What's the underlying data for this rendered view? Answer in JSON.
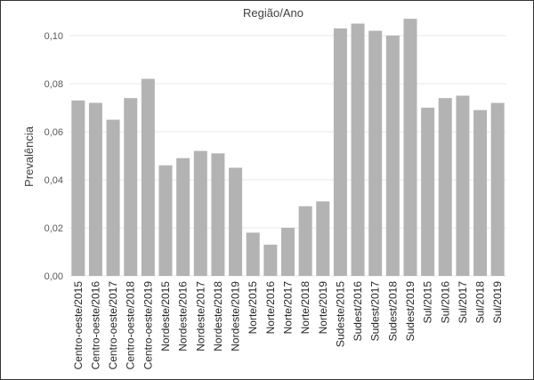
{
  "chart_data": {
    "type": "bar",
    "title": "Região/Ano",
    "ylabel": "Prevalência",
    "xlabel": "",
    "ylim": [
      0,
      0.11
    ],
    "grid": true,
    "bar_color": "#b3b3b3",
    "grid_color": "#e8e8e8",
    "yticks": [
      "0,00",
      "0,02",
      "0,04",
      "0,06",
      "0,08",
      "0,10"
    ],
    "ytick_values": [
      0,
      0.02,
      0.04,
      0.06,
      0.08,
      0.1
    ],
    "categories": [
      "Centro-oeste/2015",
      "Centro-oeste/2016",
      "Centro-oeste/2017",
      "Centro-oeste/2018",
      "Centro-oeste/2019",
      "Nordeste/2015",
      "Nordeste/2016",
      "Nordeste/2017",
      "Nordeste/2018",
      "Nordeste/2019",
      "Norte/2015",
      "Norte/2016",
      "Norte/2017",
      "Norte/2018",
      "Norte/2019",
      "Sudeste/2015",
      "Sudest/2016",
      "Sudest/2017",
      "Sudest/2018",
      "Sudest/2019",
      "Sul/2015",
      "Sul/2016",
      "Sul/2017",
      "Sul/2018",
      "Sul/2019"
    ],
    "values": [
      0.073,
      0.072,
      0.065,
      0.074,
      0.082,
      0.046,
      0.049,
      0.052,
      0.051,
      0.045,
      0.018,
      0.013,
      0.02,
      0.029,
      0.031,
      0.103,
      0.105,
      0.102,
      0.1,
      0.107,
      0.07,
      0.074,
      0.075,
      0.069,
      0.072
    ]
  }
}
